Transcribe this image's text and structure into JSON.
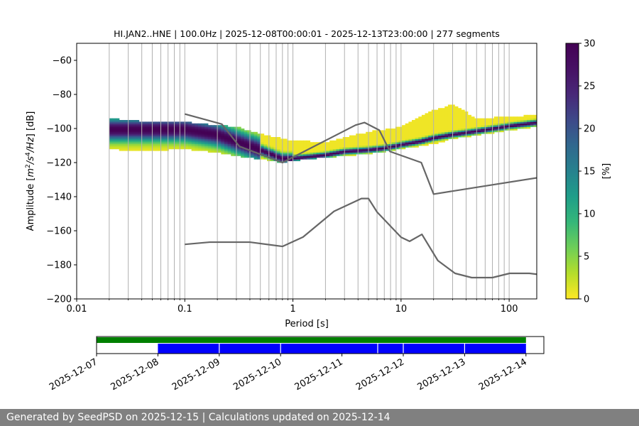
{
  "chart_data": [
    {
      "type": "heatmap",
      "title": "HI.JAN2..HNE | 100.0Hz | 2025-12-08T00:00:01 - 2025-12-13T23:00:00 | 277 segments",
      "xlabel": "Period [s]",
      "ylabel_parts": [
        "Amplitude [",
        "m",
        "2",
        "/",
        "s",
        "4",
        "/",
        "Hz",
        "] [dB]"
      ],
      "x_scale": "log",
      "xlim": [
        0.01,
        180
      ],
      "ylim": [
        -200,
        -50
      ],
      "x_ticks": [
        0.01,
        0.1,
        1,
        10,
        100
      ],
      "x_tick_labels": [
        "0.01",
        "0.1",
        "1",
        "10",
        "100"
      ],
      "y_ticks": [
        -200,
        -180,
        -160,
        -140,
        -120,
        -100,
        -80,
        -60
      ],
      "y_tick_labels": [
        "−200",
        "−180",
        "−160",
        "−140",
        "−120",
        "−100",
        "−80",
        "−60"
      ],
      "grid": "vertical period gridlines",
      "colormap": "viridis_r",
      "colorbar": {
        "label": "[%]",
        "range": [
          0,
          30
        ],
        "ticks": [
          0,
          5,
          10,
          15,
          20,
          25,
          30
        ],
        "tick_labels": [
          "0",
          "5",
          "10",
          "15",
          "20",
          "25",
          "30"
        ]
      },
      "psd_mode_curve": {
        "period": [
          0.02,
          0.05,
          0.1,
          0.2,
          0.3,
          0.5,
          0.8,
          1.0,
          2.0,
          3.0,
          5.0,
          7.0,
          10,
          15,
          20,
          30,
          50,
          100,
          180
        ],
        "db": [
          -101,
          -101,
          -101,
          -104,
          -108,
          -113,
          -118,
          -118,
          -116,
          -114,
          -113,
          -112,
          -110,
          -108,
          -106,
          -104,
          -102,
          -99,
          -97
        ]
      },
      "psd_spread": {
        "period": [
          0.02,
          0.03,
          0.05,
          0.1,
          0.2,
          0.3,
          0.5,
          0.8,
          1.0,
          2.0,
          3.0,
          5.0,
          10,
          20,
          30,
          50,
          100,
          180
        ],
        "db_min": [
          -112,
          -113,
          -113,
          -112,
          -114,
          -116,
          -118,
          -120,
          -119,
          -117,
          -116,
          -115,
          -112,
          -109,
          -106,
          -104,
          -101,
          -99
        ],
        "db_max": [
          -95,
          -96,
          -97,
          -97,
          -99,
          -100,
          -104,
          -107,
          -108,
          -109,
          -106,
          -103,
          -100,
          -90,
          -87,
          -95,
          -94,
          -93
        ]
      },
      "noise_model_high": {
        "period": [
          0.1,
          0.22,
          0.32,
          0.8,
          3.8,
          4.6,
          6.3,
          7.9,
          15.4,
          20,
          354
        ],
        "db": [
          -91.5,
          -97.4,
          -110.5,
          -120,
          -98,
          -96.5,
          -101,
          -113.5,
          -120,
          -138.5,
          -126
        ]
      },
      "noise_model_low": {
        "period": [
          0.1,
          0.17,
          0.4,
          0.8,
          1.24,
          2.4,
          4.3,
          5,
          6,
          10,
          12,
          15.6,
          21.9,
          31.6,
          45,
          70,
          101,
          154,
          328
        ],
        "db": [
          -168,
          -166.7,
          -166.7,
          -169.2,
          -163.7,
          -148.6,
          -141.1,
          -141.1,
          -149,
          -163.8,
          -166.2,
          -162.1,
          -177.5,
          -185,
          -187.5,
          -187.5,
          -185,
          -185,
          -187.5
        ]
      }
    },
    {
      "type": "timeline",
      "x_range": [
        "2025-12-07",
        "2025-12-14T07:00"
      ],
      "x_tick_labels": [
        "2025-12-07",
        "2025-12-08",
        "2025-12-09",
        "2025-12-10",
        "2025-12-11",
        "2025-12-12",
        "2025-12-13",
        "2025-12-14"
      ],
      "data_availability": {
        "color": "#008000",
        "start": "2025-12-07",
        "end": "2025-12-14"
      },
      "psd_segments": {
        "color": "#0000ff",
        "start": "2025-12-08",
        "end": "2025-12-14",
        "gaps": [
          "2025-12-09",
          "2025-12-10",
          "2025-12-11T14:00",
          "2025-12-12",
          "2025-12-13"
        ]
      }
    }
  ],
  "footer": {
    "text": "Generated by SeedPSD on 2025-12-15 | Calculations updated on 2025-12-14"
  }
}
